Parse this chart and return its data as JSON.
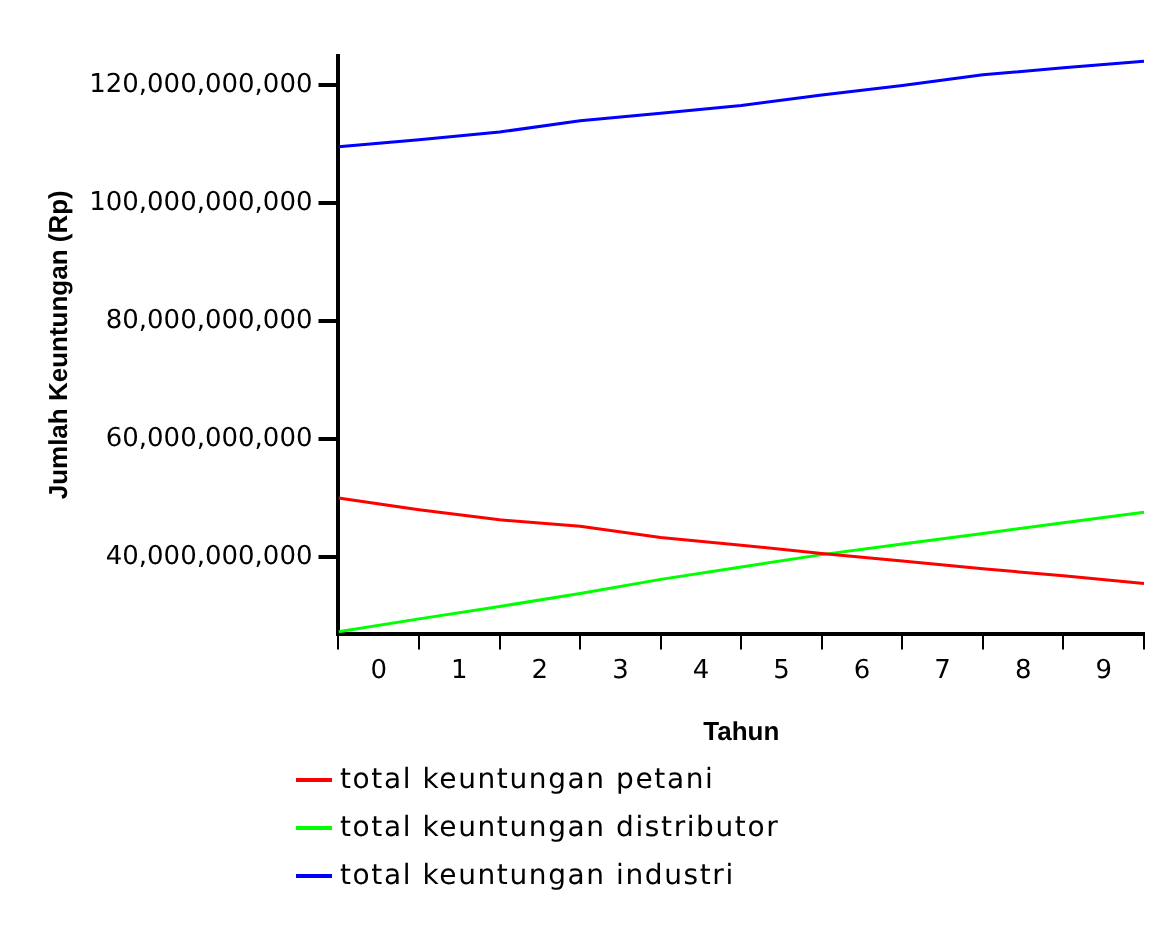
{
  "chart_data": {
    "type": "line",
    "xlabel": "Tahun",
    "ylabel": "Jumlah Keuntungan (Rp)",
    "x": [
      0,
      1,
      2,
      3,
      4,
      5,
      6,
      7,
      8,
      9,
      10
    ],
    "series": [
      {
        "name": "total keuntungan petani",
        "color": "#ff0000",
        "values": [
          50000000000,
          48000000000,
          46300000000,
          45200000000,
          43300000000,
          42000000000,
          40600000000,
          39300000000,
          38000000000,
          36800000000,
          35500000000
        ]
      },
      {
        "name": "total keuntungan distributor",
        "color": "#00ff00",
        "values": [
          27300000000,
          29500000000,
          31600000000,
          33800000000,
          36200000000,
          38300000000,
          40400000000,
          42200000000,
          44000000000,
          45800000000,
          47600000000
        ]
      },
      {
        "name": "total keuntungan industri",
        "color": "#0000ff",
        "values": [
          109600000000,
          110800000000,
          112100000000,
          114000000000,
          115300000000,
          116600000000,
          118400000000,
          120000000000,
          121800000000,
          123000000000,
          124100000000
        ]
      }
    ],
    "xlim": [
      0,
      10
    ],
    "xticks": [
      {
        "value": 0,
        "label": null
      },
      {
        "value": 0.5,
        "label": "0"
      },
      {
        "value": 1,
        "label": null
      },
      {
        "value": 1.5,
        "label": "1"
      },
      {
        "value": 2,
        "label": null
      },
      {
        "value": 2.5,
        "label": "2"
      },
      {
        "value": 3,
        "label": null
      },
      {
        "value": 3.5,
        "label": "3"
      },
      {
        "value": 4,
        "label": null
      },
      {
        "value": 4.5,
        "label": "4"
      },
      {
        "value": 5,
        "label": null
      },
      {
        "value": 5.5,
        "label": "5"
      },
      {
        "value": 6,
        "label": null
      },
      {
        "value": 6.5,
        "label": "6"
      },
      {
        "value": 7,
        "label": null
      },
      {
        "value": 7.5,
        "label": "7"
      },
      {
        "value": 8,
        "label": null
      },
      {
        "value": 8.5,
        "label": "8"
      },
      {
        "value": 9,
        "label": null
      },
      {
        "value": 9.5,
        "label": "9"
      },
      {
        "value": 10,
        "label": null
      }
    ],
    "ylim": [
      27000000000,
      125000000000
    ],
    "yticks": [
      {
        "value": 40000000000,
        "label": "40,000,000,000"
      },
      {
        "value": 60000000000,
        "label": "60,000,000,000"
      },
      {
        "value": 80000000000,
        "label": "80,000,000,000"
      },
      {
        "value": 100000000000,
        "label": "100,000,000,000"
      },
      {
        "value": 120000000000,
        "label": "120,000,000,000"
      }
    ],
    "grid": false,
    "legend": "bottom",
    "marker": "none",
    "line_style": "solid"
  }
}
